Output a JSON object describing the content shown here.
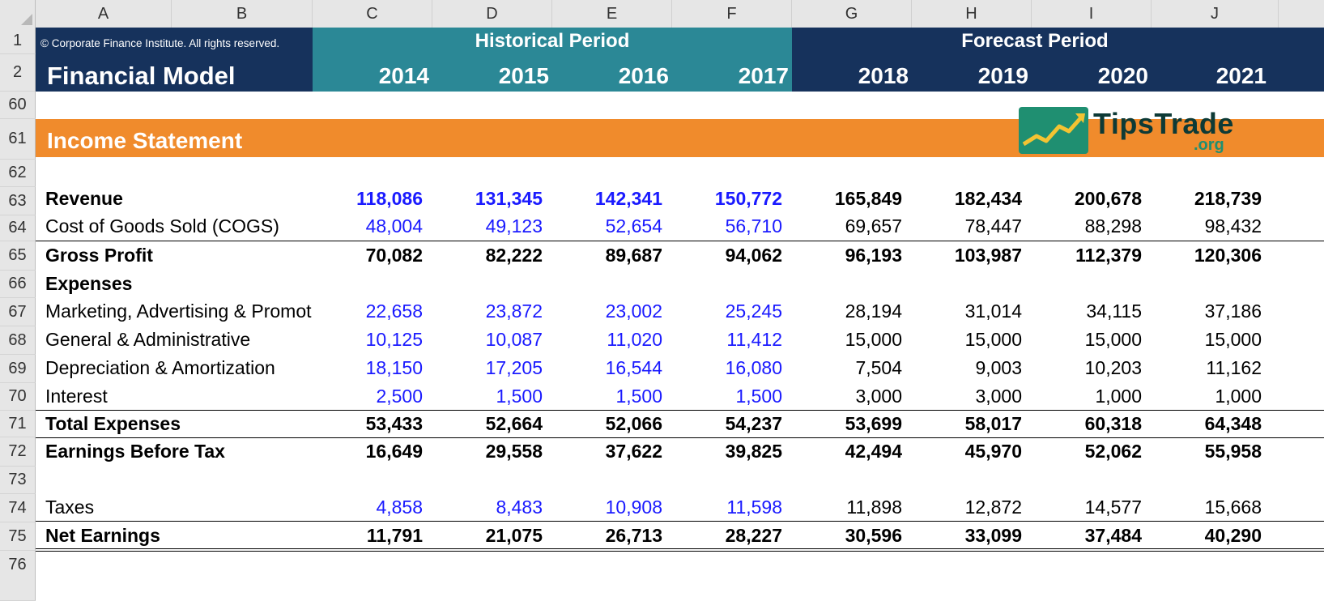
{
  "columns": [
    "A",
    "B",
    "C",
    "D",
    "E",
    "F",
    "G",
    "H",
    "I",
    "J"
  ],
  "header": {
    "copyright": "© Corporate Finance Institute. All rights reserved.",
    "title": "Financial Model",
    "historical_label": "Historical Period",
    "forecast_label": "Forecast Period",
    "years": [
      "2014",
      "2015",
      "2016",
      "2017",
      "2018",
      "2019",
      "2020",
      "2021"
    ]
  },
  "section": {
    "title": "Income Statement"
  },
  "logo": {
    "name": "TipsTrade",
    "suffix": ".org"
  },
  "row_numbers": [
    "1",
    "2",
    "60",
    "61",
    "62",
    "63",
    "64",
    "65",
    "66",
    "67",
    "68",
    "69",
    "70",
    "71",
    "72",
    "73",
    "74",
    "75",
    "76"
  ],
  "rows": [
    {
      "num": "63",
      "label": "Revenue",
      "bold": true,
      "values": [
        "118,086",
        "131,345",
        "142,341",
        "150,772",
        "165,849",
        "182,434",
        "200,678",
        "218,739"
      ]
    },
    {
      "num": "64",
      "label": "Cost of Goods Sold (COGS)",
      "bold": false,
      "values": [
        "48,004",
        "49,123",
        "52,654",
        "56,710",
        "69,657",
        "78,447",
        "88,298",
        "98,432"
      ]
    },
    {
      "num": "65",
      "label": "Gross Profit",
      "bold": true,
      "values": [
        "70,082",
        "82,222",
        "89,687",
        "94,062",
        "96,193",
        "103,987",
        "112,379",
        "120,306"
      ]
    },
    {
      "num": "66",
      "label": "Expenses",
      "bold": true,
      "values": []
    },
    {
      "num": "67",
      "label": "Marketing, Advertising & Promotior",
      "bold": false,
      "values": [
        "22,658",
        "23,872",
        "23,002",
        "25,245",
        "28,194",
        "31,014",
        "34,115",
        "37,186"
      ]
    },
    {
      "num": "68",
      "label": "General & Administrative",
      "bold": false,
      "values": [
        "10,125",
        "10,087",
        "11,020",
        "11,412",
        "15,000",
        "15,000",
        "15,000",
        "15,000"
      ]
    },
    {
      "num": "69",
      "label": "Depreciation & Amortization",
      "bold": false,
      "values": [
        "18,150",
        "17,205",
        "16,544",
        "16,080",
        "7,504",
        "9,003",
        "10,203",
        "11,162"
      ]
    },
    {
      "num": "70",
      "label": "Interest",
      "bold": false,
      "values": [
        "2,500",
        "1,500",
        "1,500",
        "1,500",
        "3,000",
        "3,000",
        "1,000",
        "1,000"
      ]
    },
    {
      "num": "71",
      "label": "Total Expenses",
      "bold": true,
      "values": [
        "53,433",
        "52,664",
        "52,066",
        "54,237",
        "53,699",
        "58,017",
        "60,318",
        "64,348"
      ]
    },
    {
      "num": "72",
      "label": "Earnings Before Tax",
      "bold": true,
      "values": [
        "16,649",
        "29,558",
        "37,622",
        "39,825",
        "42,494",
        "45,970",
        "52,062",
        "55,958"
      ]
    },
    {
      "num": "74",
      "label": "Taxes",
      "bold": false,
      "values": [
        "4,858",
        "8,483",
        "10,908",
        "11,598",
        "11,898",
        "12,872",
        "14,577",
        "15,668"
      ]
    },
    {
      "num": "75",
      "label": "Net Earnings",
      "bold": true,
      "values": [
        "11,791",
        "21,075",
        "26,713",
        "28,227",
        "30,596",
        "33,099",
        "37,484",
        "40,290"
      ]
    }
  ],
  "colors": {
    "navy": "#16325c",
    "teal": "#2b8896",
    "orange": "#f08b2c",
    "historical_value": "#1a1aff"
  }
}
